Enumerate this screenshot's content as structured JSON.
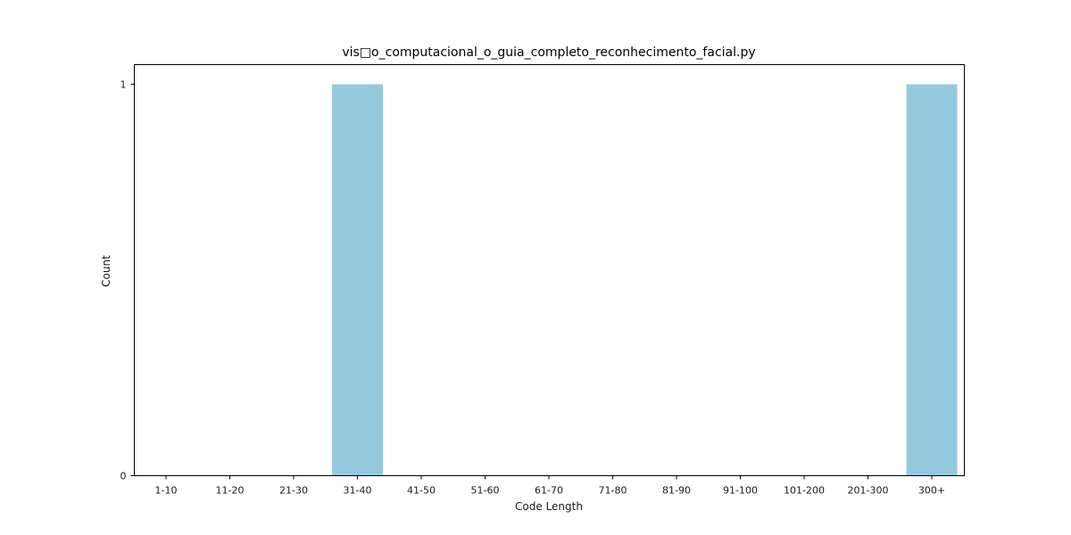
{
  "chart_data": {
    "type": "bar",
    "title": "vis□o_computacional_o_guia_completo_reconhecimento_facial.py",
    "xlabel": "Code Length",
    "ylabel": "Count",
    "categories": [
      "1-10",
      "11-20",
      "21-30",
      "31-40",
      "41-50",
      "51-60",
      "61-70",
      "71-80",
      "81-90",
      "91-100",
      "101-200",
      "201-300",
      "300+"
    ],
    "values": [
      0,
      0,
      0,
      1,
      0,
      0,
      0,
      0,
      0,
      0,
      0,
      0,
      1
    ],
    "ylim": [
      0,
      1.05
    ],
    "yticks": [
      0,
      1
    ],
    "bar_color": "#95c9de",
    "grid": false,
    "legend": "none"
  }
}
